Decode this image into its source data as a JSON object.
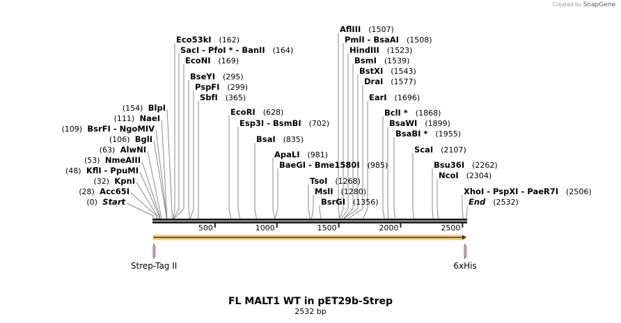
{
  "credit": {
    "prefix": "Created by",
    "brand": "SnapGene"
  },
  "title": "FL MALT1 WT in pET29b-Strep",
  "length_label": "2532 bp",
  "sequence_length": 2532,
  "scale_ticks": [
    "500",
    "1000",
    "1500",
    "2000",
    "2500"
  ],
  "features": [
    {
      "name": "Strep-Tag II",
      "position": 5,
      "color": "#d8a0c0"
    },
    {
      "name": "6xHis",
      "position": 2520,
      "color": "#d8a0c0"
    }
  ],
  "orf": {
    "start": 0,
    "end": 2532,
    "color": "#f7c96a"
  },
  "sites": [
    {
      "name": "Start",
      "pos": 0,
      "pos_label": "(0)",
      "italic": true
    },
    {
      "name": "Acc65I",
      "pos": 28,
      "pos_label": "(28)"
    },
    {
      "name": "KpnI",
      "pos": 32,
      "pos_label": "(32)"
    },
    {
      "name": "KflI  - PpuMI",
      "pos": 48,
      "pos_label": "(48)"
    },
    {
      "name": "NmeAIII",
      "pos": 53,
      "pos_label": "(53)"
    },
    {
      "name": "AlwNI",
      "pos": 63,
      "pos_label": "(63)"
    },
    {
      "name": "BglI",
      "pos": 106,
      "pos_label": "(106)"
    },
    {
      "name": "BsrFI  - NgoMIV",
      "pos": 109,
      "pos_label": "(109)"
    },
    {
      "name": "NaeI",
      "pos": 111,
      "pos_label": "(111)"
    },
    {
      "name": "BlpI",
      "pos": 154,
      "pos_label": "(154)"
    },
    {
      "name": "Eco53kI",
      "pos": 162,
      "pos_label": "(162)"
    },
    {
      "name": "SacI  - PfoI * - BanII",
      "pos": 164,
      "pos_label": "(164)"
    },
    {
      "name": "EcoNI",
      "pos": 169,
      "pos_label": "(169)"
    },
    {
      "name": "BseYI",
      "pos": 295,
      "pos_label": "(295)"
    },
    {
      "name": "PspFI",
      "pos": 299,
      "pos_label": "(299)"
    },
    {
      "name": "SbfI",
      "pos": 365,
      "pos_label": "(365)"
    },
    {
      "name": "EcoRI",
      "pos": 628,
      "pos_label": "(628)"
    },
    {
      "name": "Esp3I  - BsmBI",
      "pos": 702,
      "pos_label": "(702)"
    },
    {
      "name": "BsaI",
      "pos": 835,
      "pos_label": "(835)"
    },
    {
      "name": "ApaLI",
      "pos": 981,
      "pos_label": "(981)"
    },
    {
      "name": "BaeGI  - Bme1580I",
      "pos": 985,
      "pos_label": "(985)"
    },
    {
      "name": "TsoI",
      "pos": 1268,
      "pos_label": "(1268)"
    },
    {
      "name": "MslI",
      "pos": 1280,
      "pos_label": "(1280)"
    },
    {
      "name": "BsrGI",
      "pos": 1356,
      "pos_label": "(1356)"
    },
    {
      "name": "AflIII",
      "pos": 1507,
      "pos_label": "(1507)"
    },
    {
      "name": "PmlI  - BsaAI",
      "pos": 1508,
      "pos_label": "(1508)"
    },
    {
      "name": "HindIII",
      "pos": 1523,
      "pos_label": "(1523)"
    },
    {
      "name": "BsmI",
      "pos": 1539,
      "pos_label": "(1539)"
    },
    {
      "name": "BstXI",
      "pos": 1543,
      "pos_label": "(1543)"
    },
    {
      "name": "DraI",
      "pos": 1577,
      "pos_label": "(1577)"
    },
    {
      "name": "EarI",
      "pos": 1696,
      "pos_label": "(1696)"
    },
    {
      "name": "BclI *",
      "pos": 1868,
      "pos_label": "(1868)"
    },
    {
      "name": "BsaWI",
      "pos": 1899,
      "pos_label": "(1899)"
    },
    {
      "name": "BsaBI *",
      "pos": 1955,
      "pos_label": "(1955)"
    },
    {
      "name": "ScaI",
      "pos": 2107,
      "pos_label": "(2107)"
    },
    {
      "name": "Bsu36I",
      "pos": 2262,
      "pos_label": "(2262)"
    },
    {
      "name": "NcoI",
      "pos": 2304,
      "pos_label": "(2304)"
    },
    {
      "name": "XhoI  - PspXI  - PaeR7I",
      "pos": 2506,
      "pos_label": "(2506)"
    },
    {
      "name": "End",
      "pos": 2532,
      "pos_label": "(2532)",
      "italic": true
    }
  ]
}
